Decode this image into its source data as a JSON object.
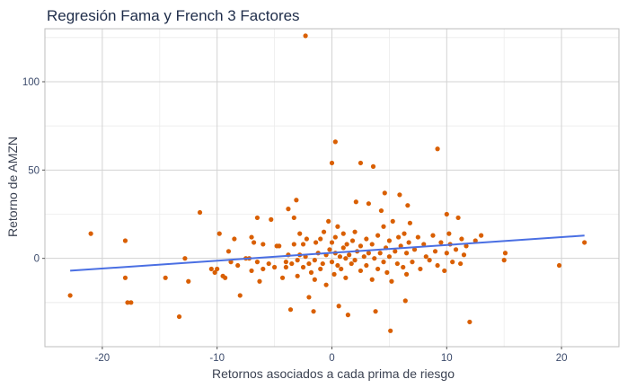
{
  "chart_data": {
    "type": "scatter",
    "title": "Regresión Fama y French 3 Factores",
    "xlabel": "Retornos asociados a cada prima de riesgo",
    "ylabel": "Retorno de AMZN",
    "xlim": [
      -25,
      25
    ],
    "ylim": [
      -50,
      130
    ],
    "x_ticks": [
      -20,
      -10,
      0,
      10,
      20
    ],
    "y_ticks": [
      0,
      50,
      100
    ],
    "grid": true,
    "colors": {
      "points": "#d95f02",
      "line": "#4a6fe3"
    },
    "regression_line": {
      "x": [
        -22.8,
        22
      ],
      "y": [
        -7,
        12.9
      ]
    },
    "points": [
      {
        "x": -22.8,
        "y": -21
      },
      {
        "x": -21,
        "y": 14
      },
      {
        "x": -18,
        "y": 10
      },
      {
        "x": -18,
        "y": -11
      },
      {
        "x": -17.8,
        "y": -25
      },
      {
        "x": -17.5,
        "y": -25
      },
      {
        "x": -14.5,
        "y": -11
      },
      {
        "x": -13.3,
        "y": -33
      },
      {
        "x": -12.8,
        "y": 0
      },
      {
        "x": -12.5,
        "y": -13
      },
      {
        "x": -11.5,
        "y": 26
      },
      {
        "x": -10.5,
        "y": -6
      },
      {
        "x": -10.2,
        "y": -8
      },
      {
        "x": -10,
        "y": -6
      },
      {
        "x": -9.8,
        "y": 14
      },
      {
        "x": -9.5,
        "y": -10
      },
      {
        "x": -9.3,
        "y": -11
      },
      {
        "x": -9,
        "y": 4
      },
      {
        "x": -8.8,
        "y": -2
      },
      {
        "x": -8.5,
        "y": 11
      },
      {
        "x": -8.2,
        "y": -4
      },
      {
        "x": -8,
        "y": -21
      },
      {
        "x": -7.5,
        "y": 0
      },
      {
        "x": -7.2,
        "y": 0
      },
      {
        "x": -7,
        "y": -7
      },
      {
        "x": -7,
        "y": 12
      },
      {
        "x": -6.8,
        "y": 9
      },
      {
        "x": -6.5,
        "y": -2
      },
      {
        "x": -6.5,
        "y": 23
      },
      {
        "x": -6.3,
        "y": -13
      },
      {
        "x": -6,
        "y": -6
      },
      {
        "x": -6,
        "y": 8
      },
      {
        "x": -5.5,
        "y": -3
      },
      {
        "x": -5.3,
        "y": 22
      },
      {
        "x": -5,
        "y": -5
      },
      {
        "x": -4.8,
        "y": 7
      },
      {
        "x": -4.6,
        "y": 7
      },
      {
        "x": -4.3,
        "y": -11
      },
      {
        "x": -4,
        "y": -2
      },
      {
        "x": -4,
        "y": -5
      },
      {
        "x": -3.8,
        "y": 2
      },
      {
        "x": -3.5,
        "y": -3
      },
      {
        "x": -3.3,
        "y": 23
      },
      {
        "x": -3.3,
        "y": 8
      },
      {
        "x": -3,
        "y": -1
      },
      {
        "x": -3,
        "y": -10
      },
      {
        "x": -2.8,
        "y": 14
      },
      {
        "x": -2.8,
        "y": 2
      },
      {
        "x": -2.5,
        "y": 8
      },
      {
        "x": -2.5,
        "y": -5
      },
      {
        "x": -2.3,
        "y": 1
      },
      {
        "x": -2.2,
        "y": 11
      },
      {
        "x": -2,
        "y": -3
      },
      {
        "x": -2,
        "y": -22
      },
      {
        "x": -1.8,
        "y": -8
      },
      {
        "x": -1.5,
        "y": -1
      },
      {
        "x": -1.5,
        "y": -12
      },
      {
        "x": -1.4,
        "y": 9
      },
      {
        "x": -1.2,
        "y": 3
      },
      {
        "x": -1,
        "y": -6
      },
      {
        "x": -1,
        "y": 11
      },
      {
        "x": -0.8,
        "y": -3
      },
      {
        "x": -0.7,
        "y": 15
      },
      {
        "x": -0.5,
        "y": 2
      },
      {
        "x": -0.5,
        "y": -15
      },
      {
        "x": -0.3,
        "y": 21
      },
      {
        "x": -0.2,
        "y": 5
      },
      {
        "x": 0,
        "y": -2
      },
      {
        "x": 0,
        "y": 9
      },
      {
        "x": 0.2,
        "y": -9
      },
      {
        "x": 0.3,
        "y": 12
      },
      {
        "x": 0.3,
        "y": 3
      },
      {
        "x": 0.5,
        "y": -4
      },
      {
        "x": 0.5,
        "y": 18
      },
      {
        "x": 0.7,
        "y": 1
      },
      {
        "x": 0.8,
        "y": -6
      },
      {
        "x": 1,
        "y": 6
      },
      {
        "x": 1,
        "y": 14
      },
      {
        "x": 1.2,
        "y": 0
      },
      {
        "x": 1.2,
        "y": -11
      },
      {
        "x": 1.3,
        "y": 8
      },
      {
        "x": 1.5,
        "y": 2
      },
      {
        "x": 1.7,
        "y": -3
      },
      {
        "x": 1.8,
        "y": 10
      },
      {
        "x": 2,
        "y": -1
      },
      {
        "x": 2,
        "y": 15
      },
      {
        "x": 2.2,
        "y": 4
      },
      {
        "x": 2.5,
        "y": -7
      },
      {
        "x": 2.5,
        "y": 7
      },
      {
        "x": 2.8,
        "y": 1
      },
      {
        "x": 3,
        "y": -4
      },
      {
        "x": 3,
        "y": 11
      },
      {
        "x": 3.2,
        "y": 3
      },
      {
        "x": 3.5,
        "y": -12
      },
      {
        "x": 3.5,
        "y": 8
      },
      {
        "x": 3.7,
        "y": 0
      },
      {
        "x": 4,
        "y": -6
      },
      {
        "x": 4,
        "y": 13
      },
      {
        "x": 4.2,
        "y": 3
      },
      {
        "x": 4.5,
        "y": 18
      },
      {
        "x": 4.5,
        "y": -2
      },
      {
        "x": 4.7,
        "y": 6
      },
      {
        "x": 4.8,
        "y": -8
      },
      {
        "x": 5,
        "y": 10
      },
      {
        "x": 5,
        "y": 1
      },
      {
        "x": 5.2,
        "y": -13
      },
      {
        "x": 5.3,
        "y": 21
      },
      {
        "x": 5.5,
        "y": 4
      },
      {
        "x": 5.7,
        "y": -3
      },
      {
        "x": 5.8,
        "y": 12
      },
      {
        "x": 6,
        "y": 7
      },
      {
        "x": 6.2,
        "y": -5
      },
      {
        "x": 6.3,
        "y": 14
      },
      {
        "x": 6.5,
        "y": 3
      },
      {
        "x": 6.5,
        "y": -9
      },
      {
        "x": 6.7,
        "y": 9
      },
      {
        "x": 6.8,
        "y": 20
      },
      {
        "x": 7,
        "y": -2
      },
      {
        "x": 7.2,
        "y": 5
      },
      {
        "x": 7.5,
        "y": 12
      },
      {
        "x": 7.7,
        "y": -6
      },
      {
        "x": 8,
        "y": 8
      },
      {
        "x": 8.2,
        "y": 1
      },
      {
        "x": 8.5,
        "y": -1
      },
      {
        "x": 8.8,
        "y": 13
      },
      {
        "x": 9,
        "y": 4
      },
      {
        "x": 9.2,
        "y": -4
      },
      {
        "x": 9.5,
        "y": 9
      },
      {
        "x": 9.8,
        "y": -7
      },
      {
        "x": 10,
        "y": 3
      },
      {
        "x": 10,
        "y": 25
      },
      {
        "x": 10.2,
        "y": 14
      },
      {
        "x": 10.3,
        "y": 8
      },
      {
        "x": 10.5,
        "y": -2
      },
      {
        "x": 10.8,
        "y": 5
      },
      {
        "x": 11,
        "y": 23
      },
      {
        "x": 11.2,
        "y": -3
      },
      {
        "x": 11.3,
        "y": 11
      },
      {
        "x": 11.5,
        "y": 2
      },
      {
        "x": 11.7,
        "y": 7
      },
      {
        "x": 12,
        "y": -36
      },
      {
        "x": 12.5,
        "y": 10
      },
      {
        "x": 13,
        "y": 13
      },
      {
        "x": 15,
        "y": -1
      },
      {
        "x": 15.1,
        "y": 3
      },
      {
        "x": 19.8,
        "y": -4
      },
      {
        "x": 22,
        "y": 9
      },
      {
        "x": -2.3,
        "y": 126
      },
      {
        "x": 0.3,
        "y": 66
      },
      {
        "x": 9.2,
        "y": 62
      },
      {
        "x": 0,
        "y": 54
      },
      {
        "x": 2.5,
        "y": 54
      },
      {
        "x": 3.6,
        "y": 52
      },
      {
        "x": 4.6,
        "y": 37
      },
      {
        "x": 5.9,
        "y": 36
      },
      {
        "x": -3.1,
        "y": 33
      },
      {
        "x": -3.8,
        "y": 28
      },
      {
        "x": 2.1,
        "y": 32
      },
      {
        "x": 3.2,
        "y": 31
      },
      {
        "x": 6.6,
        "y": 30
      },
      {
        "x": 4.3,
        "y": 27
      },
      {
        "x": 1.4,
        "y": -32
      },
      {
        "x": -1.6,
        "y": -30
      },
      {
        "x": -3.6,
        "y": -29
      },
      {
        "x": 3.8,
        "y": -30
      },
      {
        "x": 6.4,
        "y": -24
      },
      {
        "x": 5.1,
        "y": -41
      },
      {
        "x": 0.6,
        "y": -27
      }
    ]
  }
}
